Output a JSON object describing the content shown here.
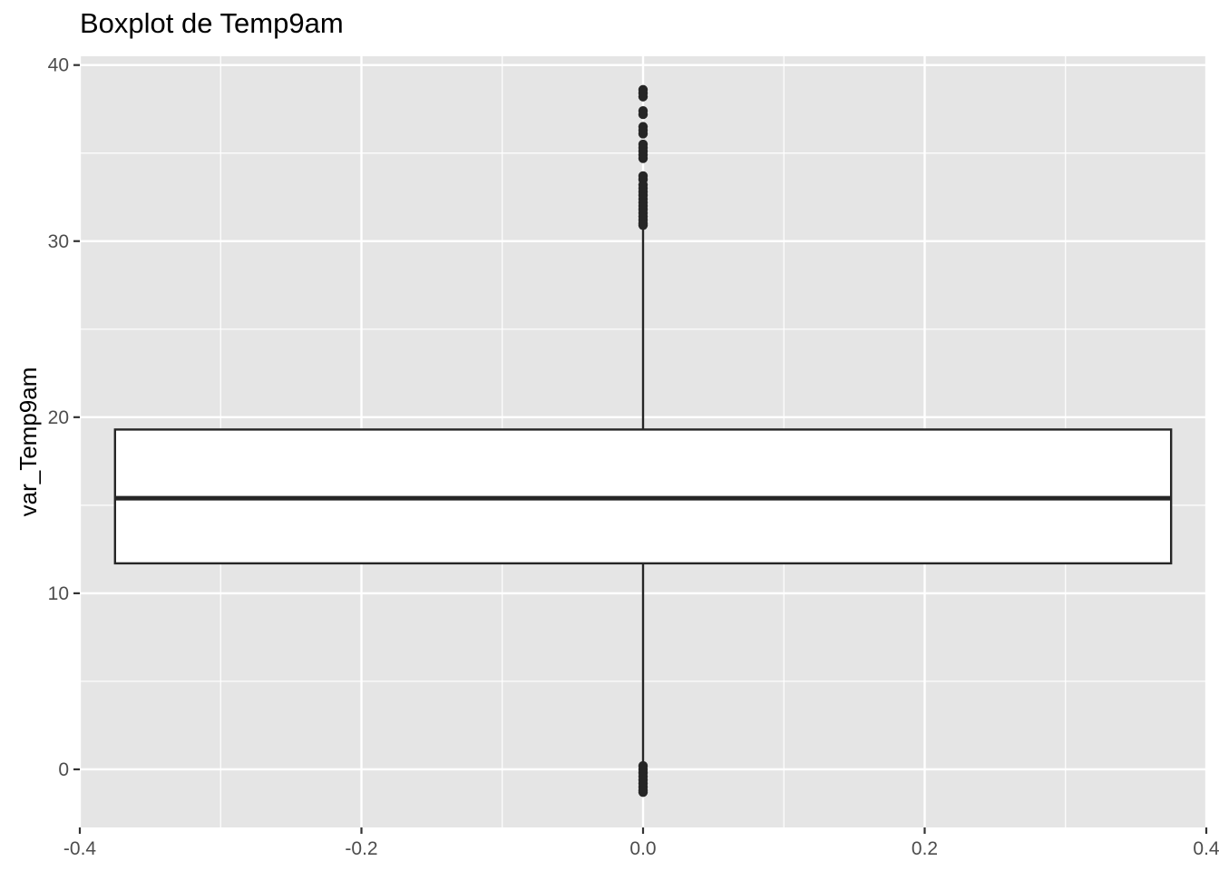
{
  "chart_data": {
    "type": "boxplot",
    "title": "Boxplot de Temp9am",
    "xlabel": "",
    "ylabel": "var_Temp9am",
    "xlim": [
      -0.4,
      0.4
    ],
    "ylim": [
      -3.3,
      40.5
    ],
    "x_ticks": [
      -0.4,
      -0.2,
      0.0,
      0.2,
      0.4
    ],
    "x_tick_labels": [
      "-0.4",
      "-0.2",
      "0.0",
      "0.2",
      "0.4"
    ],
    "y_ticks": [
      0,
      10,
      20,
      30,
      40
    ],
    "y_tick_labels": [
      "0",
      "10",
      "20",
      "30",
      "40"
    ],
    "grid": true,
    "box": {
      "x": 0.0,
      "xmin": -0.375,
      "xmax": 0.375,
      "q1": 11.7,
      "median": 15.4,
      "q3": 19.3,
      "whisker_low": 0.3,
      "whisker_high": 30.8
    },
    "outliers_high": [
      30.9,
      31.0,
      31.2,
      31.4,
      31.6,
      31.8,
      32.0,
      32.2,
      32.4,
      32.6,
      32.8,
      33.0,
      33.2,
      33.5,
      33.7,
      34.7,
      34.9,
      35.1,
      35.3,
      35.5,
      36.1,
      36.3,
      36.5,
      37.2,
      37.4,
      38.2,
      38.4,
      38.6
    ],
    "outliers_low": [
      0.2,
      0.0,
      -0.2,
      -0.4,
      -0.6,
      -0.8,
      -1.0,
      -1.2,
      -1.3
    ],
    "colors": {
      "panel_background": "#e5e5e5",
      "grid": "#ffffff",
      "box_fill": "#ffffff",
      "box_line": "#262626",
      "point": "#262626",
      "tick_text": "#4d4d4d",
      "axis_title": "#000000"
    }
  }
}
